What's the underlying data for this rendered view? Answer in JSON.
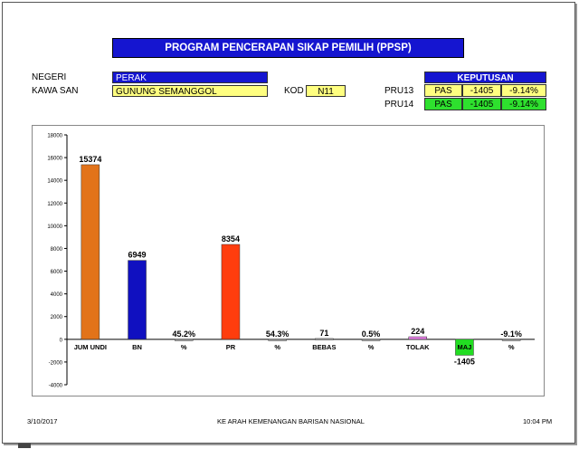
{
  "header": {
    "title": "PROGRAM PENCERAPAN SIKAP PEMILIH (PPSP)",
    "negeri_label": "NEGERI",
    "negeri_value": "PERAK",
    "kawasan_label": "KAWA SAN",
    "kawasan_value": "GUNUNG SEMANGGOL",
    "kod_label": "KOD",
    "kod_value": "N11"
  },
  "keputusan": {
    "title": "KEPUTUSAN",
    "rows": [
      {
        "label": "PRU13",
        "party": "PAS",
        "majority": "-1405",
        "percent": "-9.14%"
      },
      {
        "label": "PRU14",
        "party": "PAS",
        "majority": "-1405",
        "percent": "-9.14%"
      }
    ]
  },
  "chart_data": {
    "type": "bar",
    "categories": [
      "JUM UNDI",
      "BN",
      "%",
      "PR",
      "%",
      "BEBAS",
      "%",
      "TOLAK",
      "MAJ",
      "%"
    ],
    "values": [
      15374,
      6949,
      45.2,
      8354,
      54.3,
      71,
      0.5,
      224,
      -1405,
      -9.1
    ],
    "data_labels": [
      "15374",
      "6949",
      "45.2%",
      "8354",
      "54.3%",
      "71",
      "0.5%",
      "224",
      "-1405",
      "-9.1%"
    ],
    "colors": [
      "#e2731a",
      "#1010c0",
      "#999999",
      "#ff3d0d",
      "#999999",
      "#999999",
      "#999999",
      "#ee82ee",
      "#22dd22",
      "#999999"
    ],
    "yticks": [
      "18000",
      "16000",
      "14000",
      "12000",
      "10000",
      "8000",
      "6000",
      "4000",
      "2000",
      "0",
      "-2000",
      "-4000"
    ],
    "ylim": [
      -4000,
      18000
    ],
    "grid": false,
    "xlabel": "",
    "ylabel": ""
  },
  "footer": {
    "date": "3/10/2017",
    "center": "KE ARAH KEMENANGAN BARISAN NASIONAL",
    "time": "10:04 PM"
  }
}
